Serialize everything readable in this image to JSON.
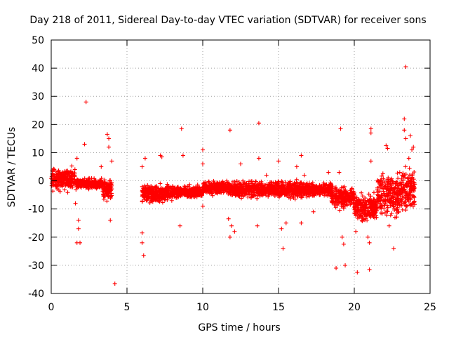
{
  "chart_data": {
    "type": "scatter",
    "title": "Day 218 of 2011, Sidereal Day-to-day VTEC variation (SDTVAR) for receiver sons",
    "xlabel": "GPS time / hours",
    "ylabel": "SDTVAR / TECUs",
    "xlim": [
      0,
      25
    ],
    "ylim": [
      -40,
      50
    ],
    "xticks": [
      0,
      5,
      10,
      15,
      20,
      25
    ],
    "yticks": [
      -40,
      -30,
      -20,
      -10,
      0,
      10,
      20,
      30,
      40,
      50
    ],
    "grid": true,
    "marker": "+",
    "color": "#ff0000",
    "bands": [
      {
        "x0": 0.0,
        "x1": 1.6,
        "center": 0.5,
        "spread": 2.6
      },
      {
        "x0": 1.6,
        "x1": 3.4,
        "center": -1.0,
        "spread": 1.2
      },
      {
        "x0": 3.4,
        "x1": 4.0,
        "center": -3.0,
        "spread": 2.5
      },
      {
        "x0": 6.0,
        "x1": 8.0,
        "center": -4.5,
        "spread": 2.2
      },
      {
        "x0": 8.0,
        "x1": 10.0,
        "center": -4.0,
        "spread": 1.5
      },
      {
        "x0": 10.0,
        "x1": 12.0,
        "center": -2.5,
        "spread": 1.5
      },
      {
        "x0": 12.0,
        "x1": 14.0,
        "center": -3.0,
        "spread": 2.0
      },
      {
        "x0": 14.0,
        "x1": 17.0,
        "center": -3.0,
        "spread": 2.0
      },
      {
        "x0": 17.0,
        "x1": 18.5,
        "center": -3.0,
        "spread": 1.5
      },
      {
        "x0": 18.5,
        "x1": 20.0,
        "center": -6.0,
        "spread": 2.5
      },
      {
        "x0": 20.0,
        "x1": 21.5,
        "center": -9.5,
        "spread": 3.0
      },
      {
        "x0": 21.5,
        "x1": 23.0,
        "center": -5.0,
        "spread": 5.0
      },
      {
        "x0": 23.0,
        "x1": 24.0,
        "center": -3.0,
        "spread": 5.0
      }
    ],
    "outliers": [
      {
        "x": 2.3,
        "y": 28
      },
      {
        "x": 2.2,
        "y": 13
      },
      {
        "x": 1.7,
        "y": 8
      },
      {
        "x": 1.8,
        "y": -14
      },
      {
        "x": 1.7,
        "y": -22
      },
      {
        "x": 1.8,
        "y": -17
      },
      {
        "x": 1.6,
        "y": -8
      },
      {
        "x": 1.9,
        "y": -22
      },
      {
        "x": 3.7,
        "y": 16.5
      },
      {
        "x": 3.8,
        "y": 15
      },
      {
        "x": 3.8,
        "y": 12
      },
      {
        "x": 4.0,
        "y": 7
      },
      {
        "x": 3.9,
        "y": -14
      },
      {
        "x": 4.2,
        "y": -36.5
      },
      {
        "x": 3.3,
        "y": 5
      },
      {
        "x": 6.0,
        "y": -18.5
      },
      {
        "x": 6.0,
        "y": -22
      },
      {
        "x": 6.1,
        "y": -26.5
      },
      {
        "x": 6.2,
        "y": 8
      },
      {
        "x": 6.0,
        "y": 5
      },
      {
        "x": 7.2,
        "y": 9
      },
      {
        "x": 7.3,
        "y": 8.5
      },
      {
        "x": 8.6,
        "y": 18.5
      },
      {
        "x": 8.7,
        "y": 9
      },
      {
        "x": 8.5,
        "y": -16
      },
      {
        "x": 10.0,
        "y": 11
      },
      {
        "x": 10.0,
        "y": 6
      },
      {
        "x": 10.0,
        "y": -9
      },
      {
        "x": 11.8,
        "y": 18
      },
      {
        "x": 11.8,
        "y": -20
      },
      {
        "x": 11.9,
        "y": -16
      },
      {
        "x": 12.1,
        "y": -18
      },
      {
        "x": 11.7,
        "y": -13.5
      },
      {
        "x": 12.5,
        "y": 6
      },
      {
        "x": 13.7,
        "y": 20.5
      },
      {
        "x": 13.7,
        "y": 8
      },
      {
        "x": 13.6,
        "y": -16
      },
      {
        "x": 14.2,
        "y": 2
      },
      {
        "x": 15.3,
        "y": -24
      },
      {
        "x": 15.2,
        "y": -17
      },
      {
        "x": 15.5,
        "y": -15
      },
      {
        "x": 15.0,
        "y": 7
      },
      {
        "x": 16.2,
        "y": 5
      },
      {
        "x": 16.5,
        "y": 9
      },
      {
        "x": 16.7,
        "y": 2
      },
      {
        "x": 16.5,
        "y": -15
      },
      {
        "x": 17.3,
        "y": -11
      },
      {
        "x": 18.3,
        "y": 3
      },
      {
        "x": 18.8,
        "y": -31
      },
      {
        "x": 19.1,
        "y": 18.5
      },
      {
        "x": 19.4,
        "y": -30
      },
      {
        "x": 19.3,
        "y": -22.5
      },
      {
        "x": 19.2,
        "y": -20
      },
      {
        "x": 19.0,
        "y": 3
      },
      {
        "x": 20.2,
        "y": -32.5
      },
      {
        "x": 20.1,
        "y": -18
      },
      {
        "x": 20.5,
        "y": -14
      },
      {
        "x": 21.0,
        "y": -31.5
      },
      {
        "x": 21.0,
        "y": -22
      },
      {
        "x": 20.9,
        "y": -20
      },
      {
        "x": 21.1,
        "y": 18.5
      },
      {
        "x": 21.1,
        "y": 17
      },
      {
        "x": 21.1,
        "y": 7
      },
      {
        "x": 22.1,
        "y": 12.5
      },
      {
        "x": 22.2,
        "y": 11.5
      },
      {
        "x": 22.3,
        "y": -16
      },
      {
        "x": 22.6,
        "y": -24
      },
      {
        "x": 23.0,
        "y": 3
      },
      {
        "x": 23.3,
        "y": 22
      },
      {
        "x": 23.3,
        "y": 18
      },
      {
        "x": 23.4,
        "y": 40.5
      },
      {
        "x": 23.4,
        "y": 15
      },
      {
        "x": 23.7,
        "y": 16
      },
      {
        "x": 23.8,
        "y": 11
      },
      {
        "x": 23.9,
        "y": 12
      },
      {
        "x": 23.6,
        "y": 8
      }
    ]
  }
}
